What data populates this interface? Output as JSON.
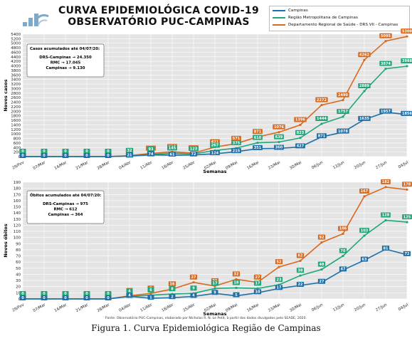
{
  "header": {
    "title_line1": "CURVA EPIDEMIOLÓGICA COVID-19",
    "title_line2": "OBSERVATÓRIO PUC-CAMPINAS"
  },
  "legend": [
    {
      "name": "Campinas",
      "color": "#1f6fa8"
    },
    {
      "name": "Região Metropolitana de Campinas",
      "color": "#21a67a"
    },
    {
      "name": "Departamento Regional de Saúde - DRS VII - Campinas",
      "color": "#d9691e"
    }
  ],
  "source_note": "Fonte: Observatório PUC-Campinas, elaborado por Nicholas R. N. Le Petit, à partir dos dados divulgados pelo SEADE, 2020.",
  "figure_caption": "Figura 1. Curva Epidemiológica Região de Campinas",
  "chart_data": [
    {
      "type": "line",
      "ylabel": "Novos casos",
      "xlabel": "Semanas",
      "ylim": [
        0,
        5400
      ],
      "yticks": [
        0,
        200,
        400,
        600,
        800,
        1000,
        1200,
        1400,
        1600,
        1800,
        2000,
        2200,
        2400,
        2600,
        2800,
        3000,
        3200,
        3400,
        3600,
        3800,
        4000,
        4200,
        4400,
        4600,
        4800,
        5000,
        5200,
        5400
      ],
      "categories": [
        "29/Fev",
        "07/Mar",
        "14/Mar",
        "21/Mar",
        "28/Mar",
        "04/Abr",
        "11/Abr",
        "18/Abr",
        "25/Abr",
        "02/Mai",
        "09/Mai",
        "16/Mai",
        "23/Mai",
        "30/Mai",
        "06/Jun",
        "13/Jun",
        "20/Jun",
        "27/Jun",
        "04/Jul"
      ],
      "grid": true,
      "annotation": {
        "title": "Casos acumulados até 04/07/20:",
        "lines": [
          "DRS-Campinas → 24.350",
          "RMC → 17.045",
          "Campinas → 9.130"
        ]
      },
      "series": [
        {
          "name": "Departamento Regional de Saúde - DRS VII - Campinas",
          "color": "#d9691e",
          "values": [
            0,
            0,
            0,
            0,
            0,
            40,
            139,
            210,
            155,
            421,
            571,
            871,
            1076,
            1396,
            2272,
            2490,
            4262,
            5095,
            5300
          ]
        },
        {
          "name": "Região Metropolitana de Campinas",
          "color": "#21a67a",
          "values": [
            0,
            0,
            0,
            0,
            0,
            32,
            93,
            145,
            123,
            267,
            375,
            610,
            639,
            823,
            1444,
            1757,
            2889,
            3874,
            3988
          ]
        },
        {
          "name": "Campinas",
          "color": "#1f6fa8",
          "values": [
            0,
            0,
            0,
            0,
            0,
            21,
            74,
            61,
            72,
            124,
            215,
            351,
            360,
            427,
            871,
            1078,
            1635,
            1957,
            1856
          ]
        }
      ]
    },
    {
      "type": "line",
      "ylabel": "Novos óbitos",
      "xlabel": "Semanas",
      "ylim": [
        0,
        190
      ],
      "yticks": [
        0,
        10,
        20,
        30,
        40,
        50,
        60,
        70,
        80,
        90,
        100,
        110,
        120,
        130,
        140,
        150,
        160,
        170,
        180,
        190
      ],
      "categories": [
        "29/Fev",
        "07/Mar",
        "14/Mar",
        "21/Mar",
        "28/Mar",
        "04/Abr",
        "11/Abr",
        "18/Abr",
        "25/Abr",
        "02/Mai",
        "09/Mai",
        "16/Mai",
        "23/Mai",
        "30/Mai",
        "06/Jun",
        "13/Jun",
        "20/Jun",
        "27/Jun",
        "04/Jul"
      ],
      "grid": true,
      "annotation": {
        "title": "Óbitos acumulados até 04/07/20:",
        "lines": [
          "DRS-Campinas → 975",
          "RMC → 612",
          "Campinas → 364"
        ]
      },
      "series": [
        {
          "name": "Departamento Regional de Saúde - DRS VII - Campinas",
          "color": "#d9691e",
          "values": [
            0,
            0,
            0,
            0,
            0,
            5,
            9,
            16,
            27,
            21,
            32,
            27,
            52,
            62,
            92,
            106,
            167,
            182,
            178
          ]
        },
        {
          "name": "Região Metropolitana de Campinas",
          "color": "#21a67a",
          "values": [
            0,
            0,
            0,
            0,
            0,
            4,
            6,
            8,
            9,
            17,
            18,
            17,
            23,
            38,
            48,
            70,
            103,
            128,
            125
          ]
        },
        {
          "name": "Campinas",
          "color": "#1f6fa8",
          "values": [
            0,
            0,
            0,
            0,
            0,
            4,
            1,
            2,
            4,
            9,
            5,
            10,
            17,
            22,
            27,
            47,
            63,
            81,
            72
          ]
        }
      ]
    }
  ]
}
